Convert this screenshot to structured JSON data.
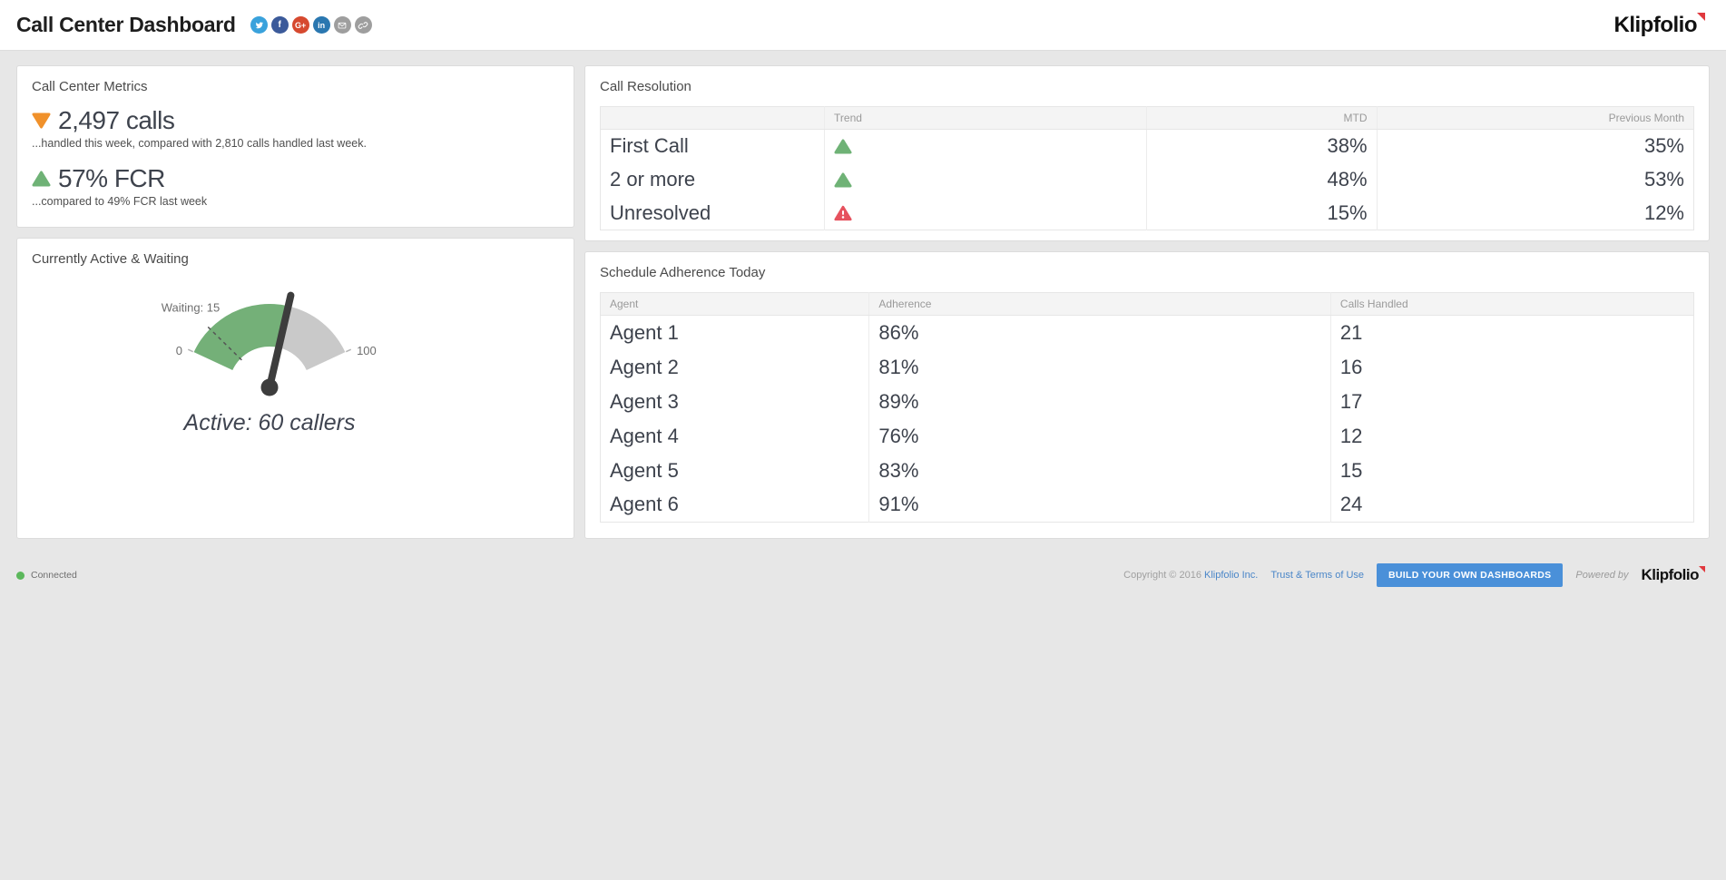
{
  "header": {
    "title": "Call Center Dashboard",
    "logo_text": "Klipfolio",
    "social_icons": [
      {
        "name": "twitter",
        "color": "#3aa2dc"
      },
      {
        "name": "facebook",
        "color": "#3b5a9a"
      },
      {
        "name": "google-plus",
        "color": "#d6492f"
      },
      {
        "name": "linkedin",
        "color": "#2a77b0"
      },
      {
        "name": "email",
        "color": "#9e9e9e"
      },
      {
        "name": "link",
        "color": "#9e9e9e"
      }
    ]
  },
  "metrics_panel": {
    "title": "Call Center Metrics",
    "metrics": [
      {
        "value": "2,497 calls",
        "trend": "down",
        "color": "#f0912b",
        "caption": "...handled this week, compared with 2,810 calls handled last week."
      },
      {
        "value": "57% FCR",
        "trend": "up",
        "color": "#6fb276",
        "caption": "...compared to 49% FCR last week"
      }
    ]
  },
  "call_resolution": {
    "title": "Call Resolution",
    "columns": {
      "label": "",
      "trend": "Trend",
      "mtd": "MTD",
      "previous": "Previous Month"
    },
    "rows": [
      {
        "label": "First Call",
        "trend": "up",
        "mtd": "38%",
        "previous": "35%"
      },
      {
        "label": "2 or more",
        "trend": "up",
        "mtd": "48%",
        "previous": "53%"
      },
      {
        "label": "Unresolved",
        "trend": "warning",
        "mtd": "15%",
        "previous": "12%"
      }
    ],
    "trend_up_color": "#6fb276",
    "trend_warning_color": "#e6525e"
  },
  "gauge_panel": {
    "title": "Currently Active & Waiting",
    "waiting_label": "Waiting: 15",
    "min_label": "0",
    "max_label": "100",
    "active_label": "Active: 60 callers",
    "gauge": {
      "min": 0,
      "max": 100,
      "value": 60,
      "marker": 15,
      "fill_color": "#74b078",
      "track_color": "#c9c9c9",
      "needle_color": "#3d3d3d",
      "marker_color": "#555555"
    }
  },
  "schedule_panel": {
    "title": "Schedule Adherence Today",
    "columns": {
      "agent": "Agent",
      "adherence": "Adherence",
      "calls": "Calls Handled"
    },
    "rows": [
      {
        "agent": "Agent 1",
        "adherence": "86%",
        "status": "good",
        "calls": "21"
      },
      {
        "agent": "Agent 2",
        "adherence": "81%",
        "status": "bad",
        "calls": "16"
      },
      {
        "agent": "Agent 3",
        "adherence": "89%",
        "status": "good",
        "calls": "17"
      },
      {
        "agent": "Agent 4",
        "adherence": "76%",
        "status": "bad",
        "calls": "12"
      },
      {
        "agent": "Agent 5",
        "adherence": "83%",
        "status": "bad",
        "calls": "15"
      },
      {
        "agent": "Agent 6",
        "adherence": "91%",
        "status": "good",
        "calls": "24"
      }
    ]
  },
  "footer": {
    "status": "Connected",
    "copyright_prefix": "Copyright © 2016",
    "company_link": "Klipfolio Inc.",
    "terms_link": "Trust & Terms of Use",
    "build_button": "BUILD YOUR OWN DASHBOARDS",
    "powered_by": "Powered by",
    "logo_text": "Klipfolio"
  },
  "chart_data": [
    {
      "type": "gauge",
      "title": "Currently Active & Waiting",
      "min": 0,
      "max": 100,
      "value": 60,
      "marker": 15,
      "value_label": "Active: 60 callers",
      "marker_label": "Waiting: 15"
    },
    {
      "type": "table",
      "title": "Call Resolution",
      "columns": [
        "",
        "Trend",
        "MTD",
        "Previous Month"
      ],
      "rows": [
        [
          "First Call",
          "up",
          "38%",
          "35%"
        ],
        [
          "2 or more",
          "up",
          "48%",
          "53%"
        ],
        [
          "Unresolved",
          "warning",
          "15%",
          "12%"
        ]
      ]
    },
    {
      "type": "table",
      "title": "Schedule Adherence Today",
      "columns": [
        "Agent",
        "Adherence",
        "Calls Handled"
      ],
      "rows": [
        [
          "Agent 1",
          "86%",
          21
        ],
        [
          "Agent 2",
          "81%",
          16
        ],
        [
          "Agent 3",
          "89%",
          17
        ],
        [
          "Agent 4",
          "76%",
          12
        ],
        [
          "Agent 5",
          "83%",
          15
        ],
        [
          "Agent 6",
          "91%",
          24
        ]
      ]
    }
  ]
}
